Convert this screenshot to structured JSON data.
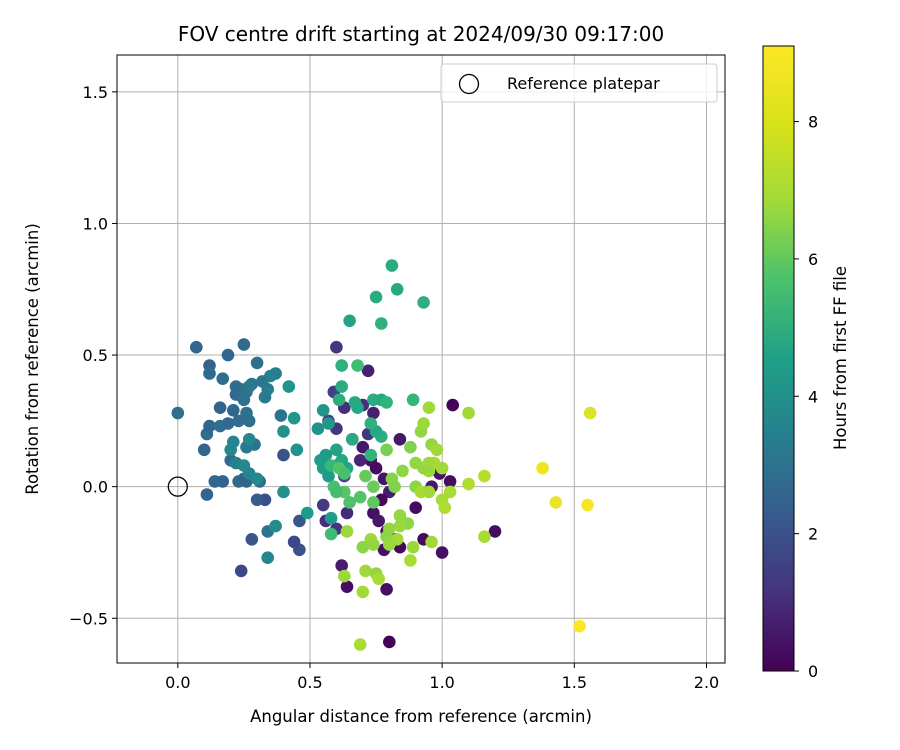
{
  "chart_data": {
    "type": "scatter",
    "title": "FOV centre drift starting at 2024/09/30 09:17:00",
    "xlabel": "Angular distance from reference (arcmin)",
    "ylabel": "Rotation from reference (arcmin)",
    "xlim": [
      -0.23,
      2.07
    ],
    "ylim": [
      -0.67,
      1.64
    ],
    "xticks": [
      0.0,
      0.5,
      1.0,
      1.5,
      2.0
    ],
    "xtick_labels": [
      "0.0",
      "0.5",
      "1.0",
      "1.5",
      "2.0"
    ],
    "yticks": [
      -0.5,
      0.0,
      0.5,
      1.0,
      1.5
    ],
    "ytick_labels": [
      "−0.5",
      "0.0",
      "0.5",
      "1.0",
      "1.5"
    ],
    "grid": true,
    "legend": {
      "placement": "top-right",
      "entries": [
        "Reference platepar"
      ]
    },
    "reference_point": {
      "x": 0.0,
      "y": 0.0,
      "label": "Reference platepar"
    },
    "colorbar": {
      "label": "Hours from first FF file",
      "colormap": "viridis",
      "range": [
        0,
        9.1
      ],
      "ticks": [
        0,
        2,
        4,
        6,
        8
      ],
      "tick_labels": [
        "0",
        "2",
        "4",
        "6",
        "8"
      ]
    },
    "points": [
      {
        "x": 0.6,
        "y": 0.53,
        "h": 1.5
      },
      {
        "x": 0.74,
        "y": 0.28,
        "h": 0.8
      },
      {
        "x": 0.63,
        "y": 0.3,
        "h": 1.2
      },
      {
        "x": 0.57,
        "y": 0.25,
        "h": 1.8
      },
      {
        "x": 0.6,
        "y": 0.22,
        "h": 1.5
      },
      {
        "x": 0.66,
        "y": 0.18,
        "h": 1.0
      },
      {
        "x": 0.7,
        "y": 0.15,
        "h": 0.6
      },
      {
        "x": 0.73,
        "y": 0.1,
        "h": 0.4
      },
      {
        "x": 0.75,
        "y": 0.07,
        "h": 0.3
      },
      {
        "x": 0.78,
        "y": 0.03,
        "h": 0.5
      },
      {
        "x": 0.8,
        "y": -0.02,
        "h": 0.7
      },
      {
        "x": 0.77,
        "y": -0.05,
        "h": 0.2
      },
      {
        "x": 0.74,
        "y": -0.1,
        "h": 0.4
      },
      {
        "x": 0.76,
        "y": -0.13,
        "h": 0.6
      },
      {
        "x": 0.79,
        "y": -0.17,
        "h": 0.3
      },
      {
        "x": 0.82,
        "y": -0.2,
        "h": 0.5
      },
      {
        "x": 0.84,
        "y": -0.23,
        "h": 0.2
      },
      {
        "x": 0.78,
        "y": -0.24,
        "h": 0.4
      },
      {
        "x": 0.84,
        "y": 0.18,
        "h": 0.6
      },
      {
        "x": 0.9,
        "y": -0.08,
        "h": 0.3
      },
      {
        "x": 0.93,
        "y": -0.2,
        "h": 0.2
      },
      {
        "x": 1.0,
        "y": -0.25,
        "h": 0.4
      },
      {
        "x": 1.2,
        "y": -0.17,
        "h": 0.3
      },
      {
        "x": 1.04,
        "y": 0.31,
        "h": 0.1
      },
      {
        "x": 0.99,
        "y": 0.05,
        "h": 0.5
      },
      {
        "x": 1.03,
        "y": 0.02,
        "h": 0.3
      },
      {
        "x": 0.96,
        "y": 0.0,
        "h": 0.6
      },
      {
        "x": 0.64,
        "y": -0.38,
        "h": 0.3
      },
      {
        "x": 0.8,
        "y": -0.59,
        "h": 0.1
      },
      {
        "x": 0.79,
        "y": -0.39,
        "h": 0.4
      },
      {
        "x": 0.62,
        "y": -0.3,
        "h": 0.7
      },
      {
        "x": 0.69,
        "y": 0.1,
        "h": 0.9
      },
      {
        "x": 0.72,
        "y": 0.44,
        "h": 0.8
      },
      {
        "x": 0.56,
        "y": -0.13,
        "h": 1.2
      },
      {
        "x": 0.6,
        "y": -0.16,
        "h": 1.4
      },
      {
        "x": 0.64,
        "y": -0.1,
        "h": 1.0
      },
      {
        "x": 0.55,
        "y": -0.07,
        "h": 1.6
      },
      {
        "x": 0.59,
        "y": 0.36,
        "h": 1.8
      },
      {
        "x": 0.63,
        "y": 0.04,
        "h": 2.0
      },
      {
        "x": 0.7,
        "y": 0.31,
        "h": 1.2
      },
      {
        "x": 0.72,
        "y": 0.2,
        "h": 1.5
      },
      {
        "x": 0.46,
        "y": -0.24,
        "h": 2.3
      },
      {
        "x": 0.44,
        "y": -0.21,
        "h": 2.0
      },
      {
        "x": 0.46,
        "y": -0.13,
        "h": 2.5
      },
      {
        "x": 0.33,
        "y": -0.05,
        "h": 2.2
      },
      {
        "x": 0.3,
        "y": -0.05,
        "h": 2.6
      },
      {
        "x": 0.28,
        "y": -0.2,
        "h": 2.4
      },
      {
        "x": 0.24,
        "y": -0.32,
        "h": 2.0
      },
      {
        "x": 0.4,
        "y": 0.12,
        "h": 2.3
      },
      {
        "x": 0.17,
        "y": 0.02,
        "h": 2.8
      },
      {
        "x": 0.11,
        "y": -0.03,
        "h": 2.9
      },
      {
        "x": 0.14,
        "y": 0.02,
        "h": 3.0
      },
      {
        "x": 0.23,
        "y": 0.02,
        "h": 3.1
      },
      {
        "x": 0.26,
        "y": 0.02,
        "h": 3.0
      },
      {
        "x": 0.25,
        "y": 0.03,
        "h": 2.9
      },
      {
        "x": 0.31,
        "y": 0.02,
        "h": 3.2
      },
      {
        "x": 0.2,
        "y": 0.1,
        "h": 3.1
      },
      {
        "x": 0.1,
        "y": 0.14,
        "h": 3.0
      },
      {
        "x": 0.11,
        "y": 0.2,
        "h": 3.2
      },
      {
        "x": 0.12,
        "y": 0.23,
        "h": 3.0
      },
      {
        "x": 0.16,
        "y": 0.23,
        "h": 3.3
      },
      {
        "x": 0.19,
        "y": 0.24,
        "h": 3.1
      },
      {
        "x": 0.23,
        "y": 0.25,
        "h": 3.2
      },
      {
        "x": 0.26,
        "y": 0.28,
        "h": 3.4
      },
      {
        "x": 0.27,
        "y": 0.25,
        "h": 3.3
      },
      {
        "x": 0.21,
        "y": 0.29,
        "h": 3.0
      },
      {
        "x": 0.16,
        "y": 0.3,
        "h": 2.9
      },
      {
        "x": 0.0,
        "y": 0.28,
        "h": 3.3
      },
      {
        "x": 0.07,
        "y": 0.53,
        "h": 3.0
      },
      {
        "x": 0.12,
        "y": 0.46,
        "h": 2.9
      },
      {
        "x": 0.12,
        "y": 0.43,
        "h": 3.1
      },
      {
        "x": 0.17,
        "y": 0.41,
        "h": 3.2
      },
      {
        "x": 0.19,
        "y": 0.5,
        "h": 3.0
      },
      {
        "x": 0.25,
        "y": 0.54,
        "h": 3.1
      },
      {
        "x": 0.3,
        "y": 0.47,
        "h": 3.4
      },
      {
        "x": 0.28,
        "y": 0.39,
        "h": 3.5
      },
      {
        "x": 0.24,
        "y": 0.37,
        "h": 3.3
      },
      {
        "x": 0.22,
        "y": 0.38,
        "h": 3.2
      },
      {
        "x": 0.22,
        "y": 0.35,
        "h": 3.1
      },
      {
        "x": 0.25,
        "y": 0.33,
        "h": 3.4
      },
      {
        "x": 0.26,
        "y": 0.36,
        "h": 3.5
      },
      {
        "x": 0.27,
        "y": 0.38,
        "h": 3.6
      },
      {
        "x": 0.33,
        "y": 0.34,
        "h": 3.7
      },
      {
        "x": 0.34,
        "y": 0.37,
        "h": 3.8
      },
      {
        "x": 0.35,
        "y": 0.42,
        "h": 4.0
      },
      {
        "x": 0.37,
        "y": 0.43,
        "h": 3.9
      },
      {
        "x": 0.39,
        "y": 0.27,
        "h": 3.5
      },
      {
        "x": 0.32,
        "y": 0.4,
        "h": 3.6
      },
      {
        "x": 0.29,
        "y": 0.16,
        "h": 3.4
      },
      {
        "x": 0.26,
        "y": 0.15,
        "h": 3.6
      },
      {
        "x": 0.21,
        "y": 0.17,
        "h": 4.1
      },
      {
        "x": 0.2,
        "y": 0.14,
        "h": 4.2
      },
      {
        "x": 0.22,
        "y": 0.09,
        "h": 4.0
      },
      {
        "x": 0.25,
        "y": 0.08,
        "h": 4.3
      },
      {
        "x": 0.27,
        "y": 0.18,
        "h": 4.2
      },
      {
        "x": 0.27,
        "y": 0.05,
        "h": 4.1
      },
      {
        "x": 0.3,
        "y": 0.03,
        "h": 4.3
      },
      {
        "x": 0.34,
        "y": -0.17,
        "h": 3.5
      },
      {
        "x": 0.37,
        "y": -0.15,
        "h": 4.4
      },
      {
        "x": 0.34,
        "y": -0.27,
        "h": 4.2
      },
      {
        "x": 0.4,
        "y": -0.02,
        "h": 4.5
      },
      {
        "x": 0.4,
        "y": 0.21,
        "h": 4.6
      },
      {
        "x": 0.42,
        "y": 0.38,
        "h": 4.7
      },
      {
        "x": 0.44,
        "y": 0.26,
        "h": 4.8
      },
      {
        "x": 0.45,
        "y": 0.14,
        "h": 4.7
      },
      {
        "x": 0.49,
        "y": -0.1,
        "h": 4.9
      },
      {
        "x": 0.53,
        "y": 0.22,
        "h": 4.6
      },
      {
        "x": 0.55,
        "y": 0.29,
        "h": 4.7
      },
      {
        "x": 0.57,
        "y": 0.24,
        "h": 4.8
      },
      {
        "x": 0.54,
        "y": 0.1,
        "h": 4.9
      },
      {
        "x": 0.56,
        "y": 0.12,
        "h": 5.0
      },
      {
        "x": 0.55,
        "y": 0.07,
        "h": 5.1
      },
      {
        "x": 0.57,
        "y": 0.04,
        "h": 5.0
      },
      {
        "x": 0.58,
        "y": -0.12,
        "h": 4.9
      },
      {
        "x": 0.6,
        "y": 0.08,
        "h": 5.2
      },
      {
        "x": 0.6,
        "y": 0.14,
        "h": 5.3
      },
      {
        "x": 0.62,
        "y": 0.1,
        "h": 5.4
      },
      {
        "x": 0.64,
        "y": 0.07,
        "h": 5.2
      },
      {
        "x": 0.66,
        "y": 0.18,
        "h": 5.5
      },
      {
        "x": 0.65,
        "y": 0.63,
        "h": 5.3
      },
      {
        "x": 0.62,
        "y": 0.38,
        "h": 5.6
      },
      {
        "x": 0.62,
        "y": 0.46,
        "h": 5.8
      },
      {
        "x": 0.68,
        "y": 0.3,
        "h": 5.4
      },
      {
        "x": 0.61,
        "y": 0.33,
        "h": 5.7
      },
      {
        "x": 0.67,
        "y": 0.32,
        "h": 5.5
      },
      {
        "x": 0.74,
        "y": 0.33,
        "h": 5.6
      },
      {
        "x": 0.77,
        "y": 0.33,
        "h": 5.5
      },
      {
        "x": 0.77,
        "y": 0.19,
        "h": 5.7
      },
      {
        "x": 0.75,
        "y": 0.21,
        "h": 5.4
      },
      {
        "x": 0.73,
        "y": 0.24,
        "h": 5.8
      },
      {
        "x": 0.79,
        "y": 0.32,
        "h": 5.9
      },
      {
        "x": 0.75,
        "y": 0.72,
        "h": 5.6
      },
      {
        "x": 0.77,
        "y": 0.62,
        "h": 5.8
      },
      {
        "x": 0.81,
        "y": 0.84,
        "h": 5.6
      },
      {
        "x": 0.83,
        "y": 0.75,
        "h": 5.5
      },
      {
        "x": 0.93,
        "y": 0.7,
        "h": 5.7
      },
      {
        "x": 0.89,
        "y": 0.33,
        "h": 6.0
      },
      {
        "x": 0.68,
        "y": 0.46,
        "h": 6.3
      },
      {
        "x": 0.73,
        "y": 0.12,
        "h": 5.9
      },
      {
        "x": 0.59,
        "y": 0.0,
        "h": 6.4
      },
      {
        "x": 0.58,
        "y": 0.08,
        "h": 6.1
      },
      {
        "x": 0.61,
        "y": 0.07,
        "h": 6.6
      },
      {
        "x": 0.63,
        "y": 0.05,
        "h": 6.4
      },
      {
        "x": 0.65,
        "y": -0.06,
        "h": 6.5
      },
      {
        "x": 0.63,
        "y": -0.02,
        "h": 6.7
      },
      {
        "x": 0.6,
        "y": -0.02,
        "h": 6.3
      },
      {
        "x": 0.69,
        "y": -0.04,
        "h": 6.6
      },
      {
        "x": 0.74,
        "y": -0.06,
        "h": 6.8
      },
      {
        "x": 0.58,
        "y": -0.18,
        "h": 6.2
      },
      {
        "x": 0.71,
        "y": 0.04,
        "h": 6.9
      },
      {
        "x": 0.74,
        "y": 0.0,
        "h": 7.0
      },
      {
        "x": 0.79,
        "y": 0.14,
        "h": 7.2
      },
      {
        "x": 0.88,
        "y": 0.15,
        "h": 7.3
      },
      {
        "x": 0.81,
        "y": 0.03,
        "h": 7.4
      },
      {
        "x": 0.82,
        "y": 0.0,
        "h": 7.3
      },
      {
        "x": 0.85,
        "y": 0.06,
        "h": 7.5
      },
      {
        "x": 0.9,
        "y": 0.09,
        "h": 7.6
      },
      {
        "x": 0.92,
        "y": 0.21,
        "h": 7.6
      },
      {
        "x": 0.93,
        "y": 0.24,
        "h": 7.7
      },
      {
        "x": 0.95,
        "y": 0.3,
        "h": 7.8
      },
      {
        "x": 0.96,
        "y": 0.16,
        "h": 7.6
      },
      {
        "x": 0.95,
        "y": 0.06,
        "h": 7.7
      },
      {
        "x": 0.98,
        "y": 0.14,
        "h": 7.8
      },
      {
        "x": 0.97,
        "y": 0.09,
        "h": 7.9
      },
      {
        "x": 0.93,
        "y": 0.07,
        "h": 7.6
      },
      {
        "x": 0.95,
        "y": 0.09,
        "h": 7.7
      },
      {
        "x": 1.0,
        "y": 0.07,
        "h": 7.8
      },
      {
        "x": 0.9,
        "y": 0.0,
        "h": 7.5
      },
      {
        "x": 0.92,
        "y": -0.02,
        "h": 7.9
      },
      {
        "x": 0.95,
        "y": -0.02,
        "h": 7.8
      },
      {
        "x": 1.0,
        "y": -0.05,
        "h": 7.9
      },
      {
        "x": 1.01,
        "y": -0.08,
        "h": 8.0
      },
      {
        "x": 1.03,
        "y": -0.02,
        "h": 7.9
      },
      {
        "x": 1.1,
        "y": 0.01,
        "h": 8.0
      },
      {
        "x": 1.1,
        "y": 0.28,
        "h": 7.8
      },
      {
        "x": 1.16,
        "y": 0.04,
        "h": 8.1
      },
      {
        "x": 1.16,
        "y": -0.19,
        "h": 7.9
      },
      {
        "x": 0.96,
        "y": -0.21,
        "h": 7.8
      },
      {
        "x": 0.89,
        "y": -0.23,
        "h": 7.7
      },
      {
        "x": 0.88,
        "y": -0.28,
        "h": 7.9
      },
      {
        "x": 0.84,
        "y": -0.11,
        "h": 7.6
      },
      {
        "x": 0.87,
        "y": -0.14,
        "h": 7.5
      },
      {
        "x": 0.84,
        "y": -0.15,
        "h": 7.7
      },
      {
        "x": 0.83,
        "y": -0.2,
        "h": 7.8
      },
      {
        "x": 0.8,
        "y": -0.16,
        "h": 7.6
      },
      {
        "x": 0.79,
        "y": -0.19,
        "h": 7.5
      },
      {
        "x": 0.8,
        "y": -0.22,
        "h": 7.7
      },
      {
        "x": 0.73,
        "y": -0.2,
        "h": 7.8
      },
      {
        "x": 0.74,
        "y": -0.22,
        "h": 7.6
      },
      {
        "x": 0.7,
        "y": -0.23,
        "h": 7.5
      },
      {
        "x": 0.64,
        "y": -0.17,
        "h": 7.7
      },
      {
        "x": 0.71,
        "y": -0.32,
        "h": 7.8
      },
      {
        "x": 0.75,
        "y": -0.33,
        "h": 7.6
      },
      {
        "x": 0.76,
        "y": -0.35,
        "h": 7.9
      },
      {
        "x": 0.63,
        "y": -0.34,
        "h": 7.7
      },
      {
        "x": 0.7,
        "y": -0.4,
        "h": 7.8
      },
      {
        "x": 0.69,
        "y": -0.6,
        "h": 7.9
      },
      {
        "x": 1.38,
        "y": 0.07,
        "h": 8.9
      },
      {
        "x": 1.43,
        "y": -0.06,
        "h": 8.8
      },
      {
        "x": 1.55,
        "y": -0.07,
        "h": 9.0
      },
      {
        "x": 1.56,
        "y": 0.28,
        "h": 8.6
      },
      {
        "x": 1.52,
        "y": -0.53,
        "h": 9.1
      }
    ]
  }
}
